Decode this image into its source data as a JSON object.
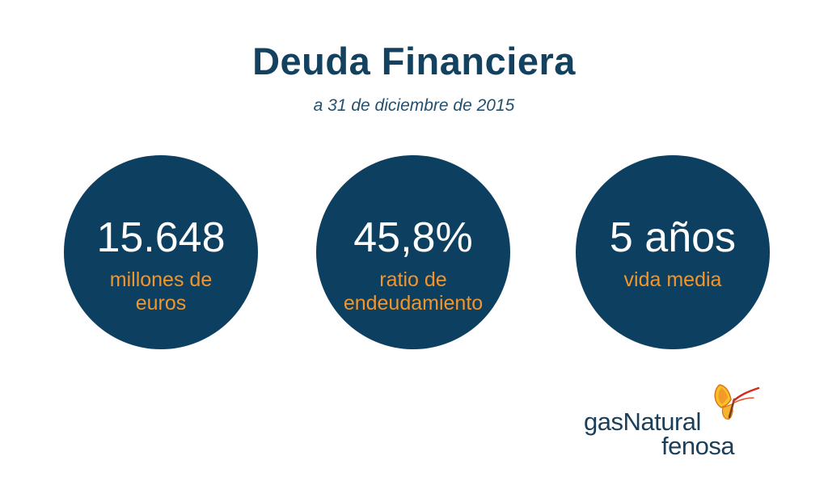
{
  "header": {
    "title": "Deuda Financiera",
    "subtitle": "a 31 de diciembre de 2015"
  },
  "stats": [
    {
      "value": "15.648",
      "label_line1": "millones de",
      "label_line2": "euros"
    },
    {
      "value": "45,8%",
      "label_line1": "ratio de",
      "label_line2": "endeudamiento"
    },
    {
      "value": "5 años",
      "label_line1": "vida media",
      "label_line2": ""
    }
  ],
  "logo": {
    "line1": "gasNatural",
    "line2": "fenosa",
    "icon": "butterfly-icon"
  },
  "colors": {
    "title": "#12425f",
    "circle": "#0d3f60",
    "label": "#f2952b",
    "value": "#ffffff"
  }
}
